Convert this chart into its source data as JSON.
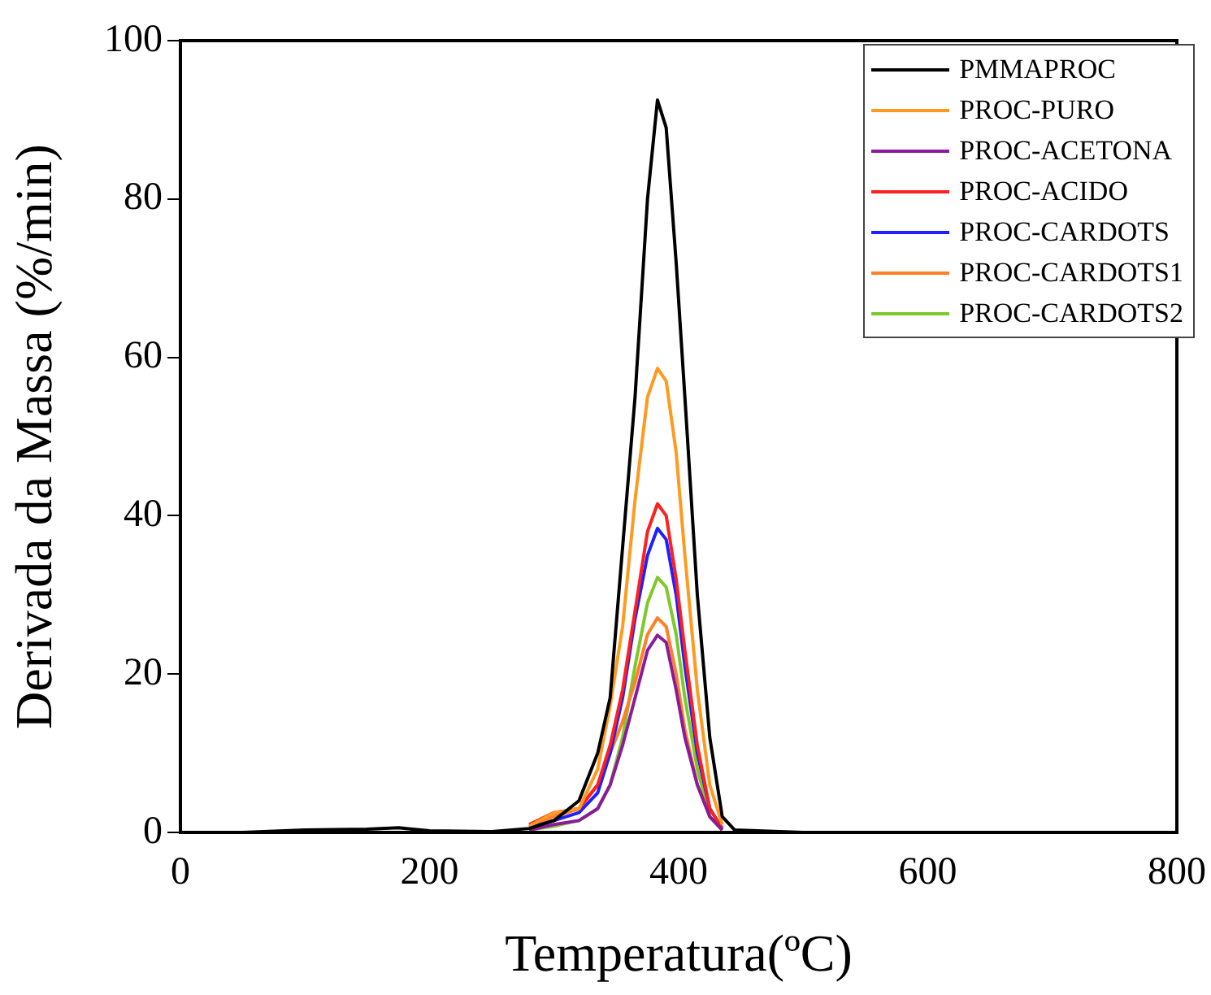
{
  "chart_data": {
    "type": "line",
    "xlabel": "Temperatura(ºC)",
    "ylabel": "Derivada da Massa (%/min)",
    "x": [
      25,
      50,
      100,
      150,
      175,
      200,
      250,
      280,
      300,
      320,
      335,
      345,
      355,
      365,
      375,
      383,
      390,
      398,
      405,
      415,
      425,
      435,
      445,
      500,
      600,
      700,
      790
    ],
    "xlim": [
      0,
      800
    ],
    "xticks": [
      0,
      200,
      400,
      600,
      800
    ],
    "ylim": [
      0,
      100
    ],
    "yticks": [
      0,
      20,
      40,
      60,
      80,
      100
    ],
    "legend": "top right",
    "grid": false,
    "marker": "none",
    "line_style": "solid",
    "series": [
      {
        "name": "PMMAPROC",
        "color": "#000000",
        "values": [
          0,
          0,
          0.3,
          0.4,
          0.6,
          0.2,
          0.1,
          0.5,
          1.5,
          4,
          10,
          17,
          36,
          55,
          80,
          92.5,
          89,
          72,
          55,
          30,
          12,
          2,
          0.3,
          0,
          0,
          0,
          0
        ]
      },
      {
        "name": "PROC-PURO",
        "color": "#ff9a1f",
        "values": [
          null,
          null,
          null,
          null,
          null,
          null,
          null,
          0.8,
          2.5,
          3,
          8,
          16,
          26,
          42,
          55,
          58.6,
          57,
          48,
          35,
          18,
          6,
          1,
          null,
          null,
          null,
          null,
          null
        ]
      },
      {
        "name": "PROC-ACETONA",
        "color": "#8b1a9c",
        "values": [
          null,
          null,
          null,
          null,
          null,
          null,
          null,
          0.3,
          1,
          1.5,
          3,
          6,
          11,
          17,
          23,
          24.9,
          24,
          18,
          12,
          6,
          2,
          0.3,
          null,
          null,
          null,
          null,
          null
        ]
      },
      {
        "name": "PROC-ACIDO",
        "color": "#ff1f1f",
        "values": [
          null,
          null,
          null,
          null,
          null,
          null,
          null,
          1,
          2.5,
          3,
          6,
          11,
          18,
          28,
          38,
          41.5,
          40,
          32,
          23,
          11,
          3,
          0.5,
          null,
          null,
          null,
          null,
          null
        ]
      },
      {
        "name": "PROC-CARDOTS",
        "color": "#1f1fff",
        "values": [
          null,
          null,
          null,
          null,
          null,
          null,
          null,
          0.6,
          1.5,
          2.5,
          5,
          10,
          17,
          27,
          35,
          38.4,
          37,
          30,
          21,
          10,
          3,
          0.5,
          null,
          null,
          null,
          null,
          null
        ]
      },
      {
        "name": "PROC-CARDOTS1",
        "color": "#ff7f27",
        "values": [
          null,
          null,
          null,
          null,
          null,
          null,
          null,
          0.7,
          2,
          3,
          6,
          10,
          14,
          19,
          25,
          27.1,
          26,
          20,
          13,
          6,
          2,
          0.3,
          null,
          null,
          null,
          null,
          null
        ]
      },
      {
        "name": "PROC-CARDOTS2",
        "color": "#7ec82a",
        "values": [
          null,
          null,
          null,
          null,
          null,
          null,
          null,
          0.3,
          0.8,
          1.5,
          3,
          6,
          12,
          21,
          29,
          32.2,
          31,
          25,
          17,
          8,
          2,
          0.3,
          null,
          null,
          null,
          null,
          null
        ]
      }
    ]
  }
}
